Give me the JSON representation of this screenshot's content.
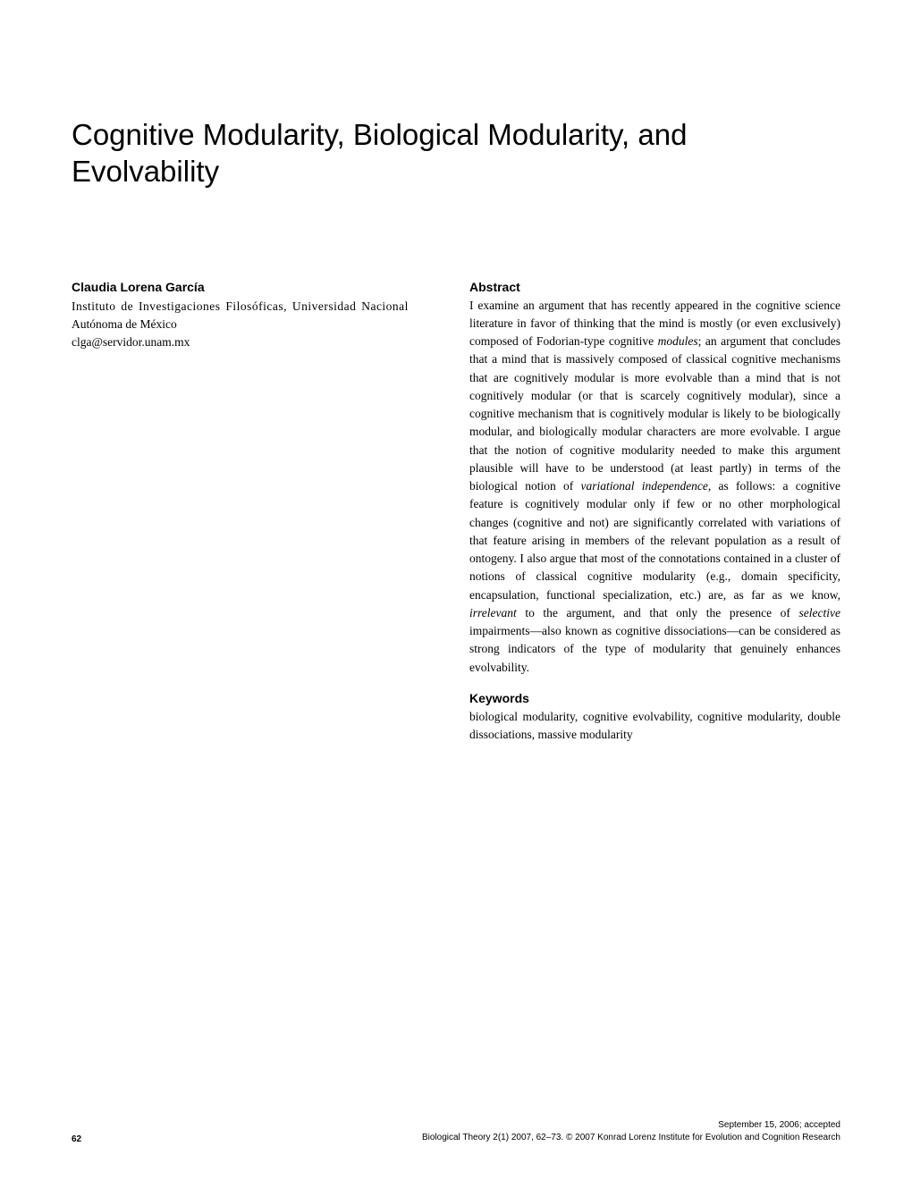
{
  "title": "Cognitive Modularity, Biological Modularity, and Evolvability",
  "author": {
    "name": "Claudia Lorena García",
    "affiliation_line1": "Instituto de Investigaciones Filosóficas, Universidad Nacional",
    "affiliation_line2": "Autónoma de México",
    "email": "clga@servidor.unam.mx"
  },
  "abstract": {
    "heading": "Abstract",
    "text_part1": "I examine an argument that has recently appeared in the cognitive science literature in favor of thinking that the mind is mostly (or even exclusively) composed of Fodorian-type cognitive ",
    "text_italic1": "modules",
    "text_part2": "; an argument that concludes that a mind that is massively composed of classical cognitive mechanisms that are cognitively modular is more evolvable than a mind that is not cognitively modular (or that is scarcely cognitively modular), since a cognitive mechanism that is cognitively modular is likely to be biologically modular, and biologically modular characters are more evolvable. I argue that the notion of cognitive modularity needed to make this argument plausible will have to be understood (at least partly) in terms of the biological notion of ",
    "text_italic2": "variational independence",
    "text_part3": ", as follows: a cognitive feature is cognitively modular only if few or no other morphological changes (cognitive and not) are significantly correlated with variations of that feature arising in members of the relevant population as a result of ontogeny. I also argue that most of the connotations contained in a cluster of notions of classical cognitive modularity (e.g., domain specificity, encapsulation, functional specialization, etc.) are, as far as we know, ",
    "text_italic3": "irrelevant",
    "text_part4": " to the argument, and that only the presence of ",
    "text_italic4": "selective",
    "text_part5": " impairments—also known as cognitive dissociations—can be considered as strong indicators of the type of modularity that genuinely enhances evolvability."
  },
  "keywords": {
    "heading": "Keywords",
    "text": "biological modularity, cognitive evolvability, cognitive modularity, double dissociations, massive modularity"
  },
  "footer": {
    "date": "September 15, 2006; accepted",
    "citation": "Biological Theory 2(1) 2007, 62–73. © 2007 Konrad Lorenz Institute for Evolution and Cognition Research",
    "page_number": "62"
  }
}
